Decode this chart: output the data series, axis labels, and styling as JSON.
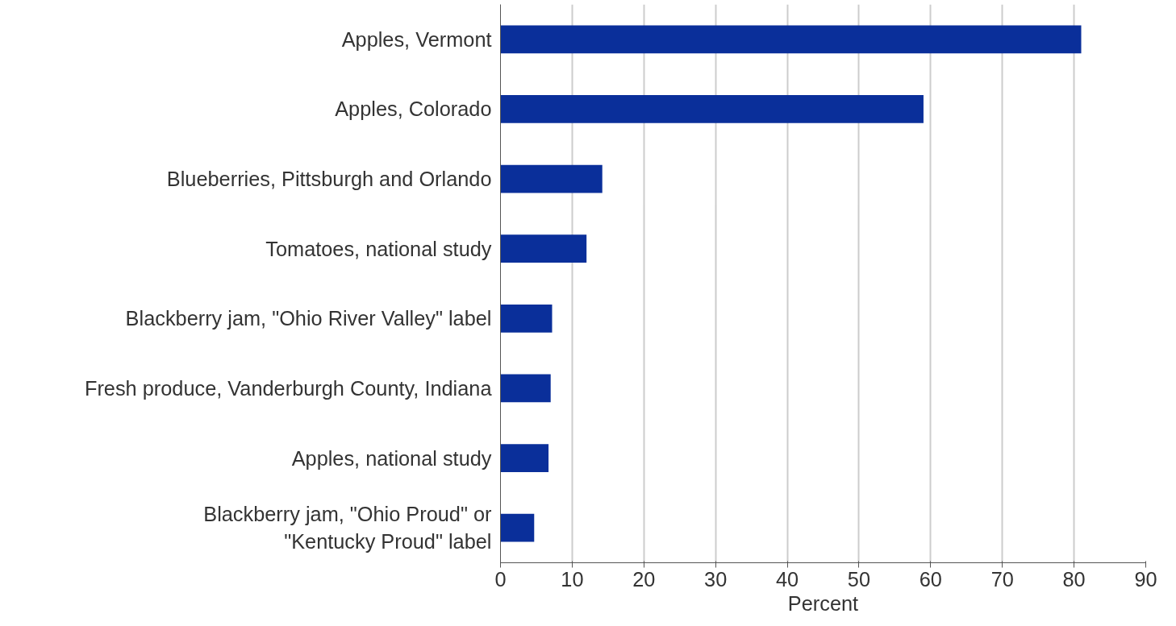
{
  "chart_data": {
    "type": "bar",
    "orientation": "horizontal",
    "xlabel": "Percent",
    "categories": [
      "Apples, Vermont",
      "Apples, Colorado",
      "Blueberries, Pittsburgh and Orlando",
      "Tomatoes, national study",
      "Blackberry jam, \"Ohio River Valley\" label",
      "Fresh produce, Vanderburgh County, Indiana",
      "Apples, national study",
      "Blackberry jam, \"Ohio Proud\" or\n\"Kentucky Proud\" label"
    ],
    "values": [
      81,
      59,
      14.2,
      12,
      7.2,
      7,
      6.7,
      4.7
    ],
    "color": "#0a2f9a",
    "xlim": [
      0,
      90
    ],
    "xticks": [
      0,
      10,
      20,
      30,
      40,
      50,
      60,
      70,
      80,
      90
    ],
    "grid": "x"
  }
}
